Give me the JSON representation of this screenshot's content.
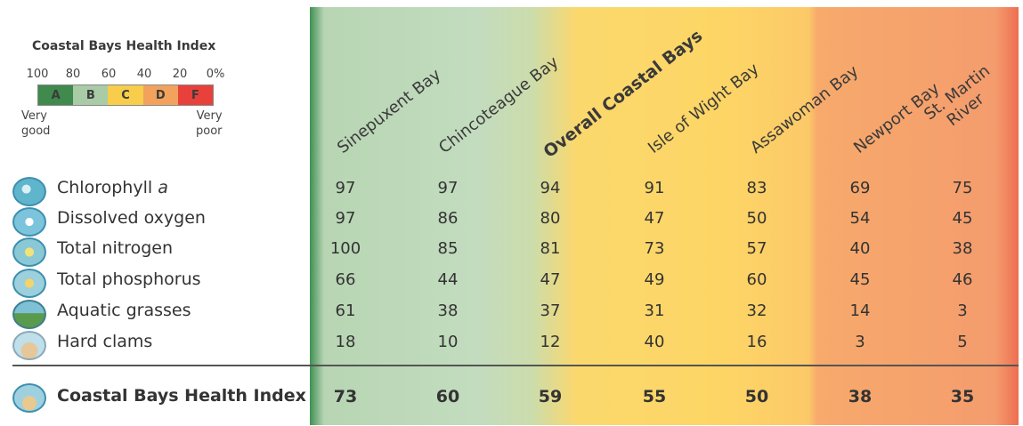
{
  "legend": {
    "title": "Coastal Bays Health Index",
    "ticks": [
      "100",
      "80",
      "60",
      "40",
      "20",
      "0%"
    ],
    "grades": [
      {
        "label": "A",
        "color": "#3f8a4c"
      },
      {
        "label": "B",
        "color": "#a9cba6"
      },
      {
        "label": "C",
        "color": "#f7cd4b"
      },
      {
        "label": "D",
        "color": "#f2a25c"
      },
      {
        "label": "F",
        "color": "#e8403a"
      }
    ],
    "good_label": [
      "Very",
      "good"
    ],
    "poor_label": [
      "Very",
      "poor"
    ]
  },
  "chart_data": {
    "type": "table",
    "columns": [
      {
        "name": "Sinepuxent Bay"
      },
      {
        "name": "Chincoteague Bay"
      },
      {
        "name": "Overall Coastal Bays"
      },
      {
        "name": "Isle of Wight Bay"
      },
      {
        "name": "Assawoman Bay"
      },
      {
        "name": "Newport Bay"
      },
      {
        "name": "St. Martin River",
        "lines": [
          "St. Martin",
          "River"
        ]
      }
    ],
    "rows": [
      {
        "label": "Chlorophyll",
        "label_italic": "a",
        "icon": "chlorophyll-icon",
        "values": [
          97,
          97,
          94,
          91,
          83,
          69,
          75
        ]
      },
      {
        "label": "Dissolved oxygen",
        "icon": "dissolved-oxygen-icon",
        "values": [
          97,
          86,
          80,
          47,
          50,
          54,
          45
        ]
      },
      {
        "label": "Total nitrogen",
        "icon": "total-nitrogen-icon",
        "values": [
          100,
          85,
          81,
          73,
          57,
          40,
          38
        ]
      },
      {
        "label": "Total phosphorus",
        "icon": "total-phosphorus-icon",
        "values": [
          66,
          44,
          47,
          49,
          60,
          45,
          46
        ]
      },
      {
        "label": "Aquatic grasses",
        "icon": "aquatic-grasses-icon",
        "values": [
          61,
          38,
          37,
          31,
          32,
          14,
          3
        ]
      },
      {
        "label": "Hard clams",
        "icon": "hard-clams-icon",
        "values": [
          18,
          10,
          12,
          40,
          16,
          3,
          5
        ]
      }
    ],
    "total": {
      "label": "Coastal Bays Health Index",
      "icon": "health-index-icon",
      "values": [
        73,
        60,
        59,
        55,
        50,
        38,
        35
      ]
    }
  }
}
